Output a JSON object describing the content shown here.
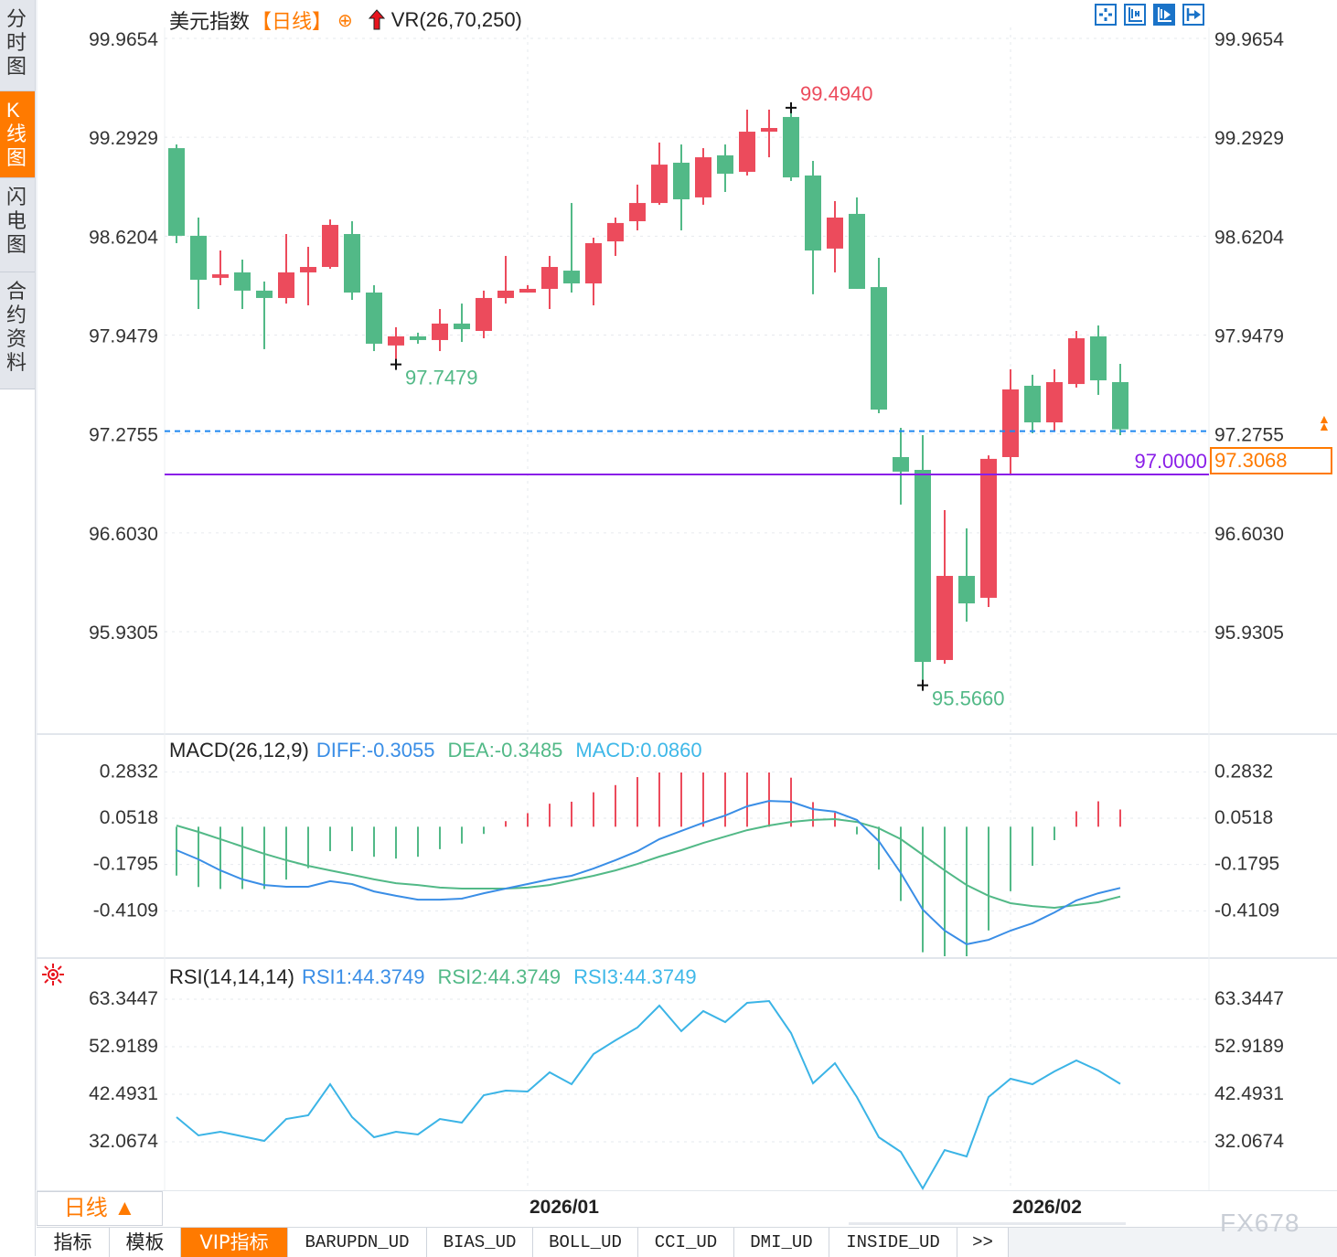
{
  "sidebar": {
    "tabs": [
      {
        "label": "分时图",
        "active": false
      },
      {
        "label": "K线图",
        "active": true
      },
      {
        "label": "闪电图",
        "active": false
      },
      {
        "label": "合约资料",
        "active": false
      }
    ]
  },
  "header": {
    "symbol": "美元指数",
    "period": "【日线】",
    "indicator": "VR(26,70,250)",
    "add_icon": "circle-plus-icon",
    "arrow_icon": "red-up-arrow-icon"
  },
  "toolbar": {
    "icons": [
      "crosshair-icon",
      "range-select-icon",
      "range-play-icon",
      "move-right-icon"
    ]
  },
  "colors": {
    "up": "#ec4b5c",
    "down": "#52b987",
    "diff": "#3a8ee6",
    "dea": "#52b987",
    "macd": "#3fb8e8",
    "rsi": "#3bb4e6",
    "accent": "#ff7a00",
    "level_line": "#8a1ee8",
    "last_price_line": "#1e88f0"
  },
  "chart_data": [
    {
      "type": "candlestick",
      "yticks": [
        "99.9654",
        "99.2929",
        "98.6204",
        "97.9479",
        "97.2755",
        "96.6030",
        "95.9305"
      ],
      "ylim": [
        95.9305,
        99.9654
      ],
      "ohlc": [
        [
          99.219,
          99.244,
          98.573,
          98.623
        ],
        [
          98.623,
          98.747,
          98.125,
          98.324
        ],
        [
          98.337,
          98.523,
          98.287,
          98.361
        ],
        [
          98.374,
          98.461,
          98.125,
          98.25
        ],
        [
          98.25,
          98.312,
          97.852,
          98.2
        ],
        [
          98.2,
          98.635,
          98.162,
          98.374
        ],
        [
          98.374,
          98.548,
          98.15,
          98.411
        ],
        [
          98.411,
          98.734,
          98.399,
          98.697
        ],
        [
          98.635,
          98.722,
          98.187,
          98.237
        ],
        [
          98.237,
          98.287,
          97.839,
          97.889
        ],
        [
          97.877,
          98.001,
          97.748,
          97.939
        ],
        [
          97.939,
          97.964,
          97.889,
          97.914
        ],
        [
          97.914,
          98.125,
          97.839,
          98.026
        ],
        [
          98.026,
          98.162,
          97.901,
          97.988
        ],
        [
          97.976,
          98.25,
          97.926,
          98.2
        ],
        [
          98.2,
          98.486,
          98.162,
          98.25
        ],
        [
          98.237,
          98.287,
          98.237,
          98.262
        ],
        [
          98.262,
          98.486,
          98.125,
          98.411
        ],
        [
          98.386,
          98.846,
          98.237,
          98.299
        ],
        [
          98.299,
          98.61,
          98.15,
          98.573
        ],
        [
          98.585,
          98.747,
          98.486,
          98.71
        ],
        [
          98.722,
          98.971,
          98.66,
          98.846
        ],
        [
          98.846,
          99.257,
          98.834,
          99.107
        ],
        [
          99.12,
          99.244,
          98.66,
          98.871
        ],
        [
          98.884,
          99.219,
          98.834,
          99.157
        ],
        [
          99.17,
          99.244,
          98.921,
          99.045
        ],
        [
          99.058,
          99.481,
          99.033,
          99.331
        ],
        [
          99.331,
          99.481,
          99.157,
          99.356
        ],
        [
          99.431,
          99.494,
          98.996,
          99.02
        ],
        [
          99.033,
          99.132,
          98.225,
          98.523
        ],
        [
          98.536,
          98.859,
          98.374,
          98.747
        ],
        [
          98.772,
          98.884,
          98.262,
          98.262
        ],
        [
          98.274,
          98.473,
          97.416,
          97.441
        ],
        [
          97.118,
          97.317,
          96.795,
          97.019
        ],
        [
          97.031,
          97.267,
          95.566,
          95.725
        ],
        [
          95.738,
          96.757,
          95.713,
          96.31
        ],
        [
          96.31,
          96.633,
          95.999,
          96.123
        ],
        [
          96.161,
          97.13,
          96.098,
          97.106
        ],
        [
          97.118,
          97.715,
          96.994,
          97.578
        ],
        [
          97.603,
          97.678,
          97.28,
          97.354
        ],
        [
          97.354,
          97.715,
          97.292,
          97.628
        ],
        [
          97.615,
          97.976,
          97.591,
          97.926
        ],
        [
          97.939,
          98.013,
          97.541,
          97.64
        ],
        [
          97.628,
          97.752,
          97.267,
          97.3068
        ]
      ],
      "annotations": [
        {
          "label": "99.4940",
          "index": 28,
          "kind": "high"
        },
        {
          "label": "97.7479",
          "index": 10,
          "kind": "low"
        },
        {
          "label": "95.5660",
          "index": 34,
          "kind": "low"
        }
      ],
      "level_line": {
        "label": "97.0000",
        "value": 97.0
      },
      "last_price": {
        "label": "97.3068",
        "value": 97.3068
      }
    },
    {
      "type": "line",
      "title": "MACD(26,12,9)",
      "legend": {
        "diff": "DIFF:-0.3055",
        "dea": "DEA:-0.3485",
        "macd": "MACD:0.0860"
      },
      "yticks": [
        "0.2832",
        "0.0518",
        "-0.1795",
        "-0.4109"
      ],
      "diff": [
        -0.117,
        -0.163,
        -0.218,
        -0.263,
        -0.291,
        -0.3,
        -0.3,
        -0.272,
        -0.286,
        -0.323,
        -0.345,
        -0.364,
        -0.364,
        -0.359,
        -0.332,
        -0.309,
        -0.286,
        -0.263,
        -0.245,
        -0.209,
        -0.167,
        -0.122,
        -0.062,
        -0.021,
        0.02,
        0.056,
        0.102,
        0.129,
        0.125,
        0.088,
        0.075,
        0.034,
        -0.072,
        -0.231,
        -0.414,
        -0.519,
        -0.587,
        -0.565,
        -0.519,
        -0.482,
        -0.428,
        -0.368,
        -0.332,
        -0.3055
      ],
      "dea": [
        0.006,
        -0.026,
        -0.062,
        -0.099,
        -0.135,
        -0.167,
        -0.195,
        -0.218,
        -0.24,
        -0.263,
        -0.282,
        -0.291,
        -0.304,
        -0.309,
        -0.309,
        -0.309,
        -0.304,
        -0.291,
        -0.268,
        -0.245,
        -0.218,
        -0.186,
        -0.149,
        -0.117,
        -0.081,
        -0.049,
        -0.017,
        0.006,
        0.024,
        0.034,
        0.038,
        0.024,
        -0.008,
        -0.062,
        -0.14,
        -0.218,
        -0.291,
        -0.345,
        -0.382,
        -0.396,
        -0.405,
        -0.391,
        -0.377,
        -0.3485
      ],
      "macd": [
        -0.244,
        -0.301,
        -0.311,
        -0.311,
        -0.311,
        -0.264,
        -0.207,
        -0.122,
        -0.122,
        -0.15,
        -0.159,
        -0.15,
        -0.112,
        -0.084,
        -0.036,
        0.028,
        0.068,
        0.115,
        0.125,
        0.172,
        0.208,
        0.248,
        0.306,
        0.306,
        0.306,
        0.306,
        0.306,
        0.306,
        0.245,
        0.123,
        0.07,
        -0.038,
        -0.214,
        -0.371,
        -0.627,
        -0.676,
        -0.676,
        -0.518,
        -0.322,
        -0.195,
        -0.067,
        0.077,
        0.127,
        0.086
      ]
    },
    {
      "type": "line",
      "title": "RSI(14,14,14)",
      "legend": {
        "rsi1": "RSI1:44.3749",
        "rsi2": "RSI2:44.3749",
        "rsi3": "RSI3:44.3749"
      },
      "yticks": [
        "63.3447",
        "52.9189",
        "42.4931",
        "32.0674"
      ],
      "rsi": [
        37.08,
        33.07,
        33.87,
        32.87,
        31.87,
        36.68,
        37.48,
        44.3,
        37.08,
        32.67,
        33.87,
        33.27,
        36.68,
        35.88,
        41.89,
        42.89,
        42.69,
        46.9,
        44.3,
        50.91,
        53.92,
        56.73,
        61.54,
        55.93,
        60.34,
        57.93,
        62.14,
        62.54,
        55.52,
        44.5,
        48.91,
        41.49,
        32.67,
        29.46,
        21.44,
        29.86,
        28.46,
        41.49,
        45.5,
        44.3,
        47.1,
        49.51,
        47.3,
        44.37
      ]
    }
  ],
  "xaxis": {
    "period_button": "日线 ▲",
    "dates": [
      {
        "label": "2026/01",
        "index": 16
      },
      {
        "label": "2026/02",
        "index": 38
      }
    ]
  },
  "bottom_tabs": [
    "指标",
    "模板",
    "VIP指标",
    "BARUPDN_UD",
    "BIAS_UD",
    "BOLL_UD",
    "CCI_UD",
    "DMI_UD",
    "INSIDE_UD",
    ">>"
  ],
  "watermark": "FX678"
}
